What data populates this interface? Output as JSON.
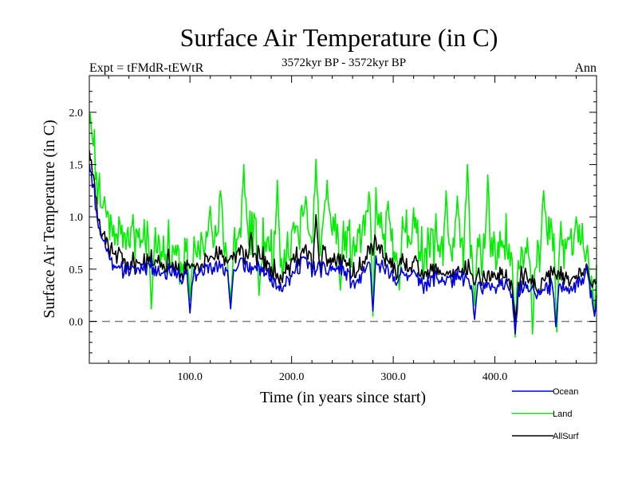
{
  "chart_data": {
    "type": "line",
    "title": "Surface Air Temperature (in C)",
    "subtitle": "3572kyr BP - 3572kyr BP",
    "expt_label": "Expt = tFMdR-tEWtR",
    "season_label": "Ann",
    "xlabel": "Time (in years since start)",
    "ylabel": "Surface Air Temperature (in C)",
    "xlim": [
      1,
      500
    ],
    "ylim": [
      -0.4,
      2.35
    ],
    "x_ticks": [
      {
        "value": 100,
        "label": "100.0"
      },
      {
        "value": 200,
        "label": "200.0"
      },
      {
        "value": 300,
        "label": "300.0"
      },
      {
        "value": 400,
        "label": "400.0"
      }
    ],
    "y_ticks": [
      {
        "value": 0.0,
        "label": "0.0"
      },
      {
        "value": 0.5,
        "label": "0.5"
      },
      {
        "value": 1.0,
        "label": "1.0"
      },
      {
        "value": 1.5,
        "label": "1.5"
      },
      {
        "value": 2.0,
        "label": "2.0"
      }
    ],
    "reference_line": {
      "y": 0.0,
      "style": "dashed",
      "color": "#808080"
    },
    "x_sample_step": 10,
    "series": [
      {
        "name": "Land",
        "color": "#00ee00",
        "x_start": 1,
        "values": [
          2.05,
          1.2,
          0.95,
          0.85,
          0.82,
          0.8,
          0.95,
          0.65,
          0.7,
          0.55,
          0.7,
          0.65,
          0.8,
          0.75,
          0.7,
          0.85,
          0.9,
          0.75,
          0.7,
          0.6,
          0.8,
          1.05,
          0.75,
          0.8,
          0.9,
          0.85,
          0.65,
          0.9,
          1.2,
          0.8,
          0.7,
          0.85,
          0.9,
          0.65,
          0.8,
          0.7,
          0.7,
          0.7,
          0.65,
          0.75,
          0.6,
          0.75,
          0.7,
          0.75,
          0.75,
          0.75,
          0.8,
          0.7,
          0.7,
          0.7,
          0.7
        ],
        "spikes": [
          [
            62,
            0.12
          ],
          [
            100,
            0.2
          ],
          [
            120,
            1.1
          ],
          [
            130,
            1.25
          ],
          [
            140,
            0.2
          ],
          [
            153,
            1.5
          ],
          [
            168,
            0.25
          ],
          [
            186,
            1.35
          ],
          [
            224,
            1.55
          ],
          [
            235,
            1.35
          ],
          [
            248,
            0.3
          ],
          [
            280,
            0.05
          ],
          [
            295,
            1.15
          ],
          [
            306,
            0.3
          ],
          [
            352,
            1.25
          ],
          [
            363,
            1.2
          ],
          [
            373,
            1.5
          ],
          [
            380,
            0.15
          ],
          [
            393,
            1.4
          ],
          [
            420,
            -0.15
          ],
          [
            424,
            0.5
          ],
          [
            437,
            -0.12
          ],
          [
            448,
            1.25
          ],
          [
            461,
            -0.1
          ],
          [
            480,
            1.0
          ],
          [
            494,
            0.3
          ],
          [
            498,
            0.05
          ]
        ],
        "noise": 0.3
      },
      {
        "name": "AllSurf",
        "color": "#000000",
        "x_start": 1,
        "values": [
          1.7,
          0.9,
          0.7,
          0.6,
          0.55,
          0.55,
          0.65,
          0.55,
          0.6,
          0.45,
          0.55,
          0.5,
          0.65,
          0.6,
          0.6,
          0.65,
          0.6,
          0.6,
          0.5,
          0.45,
          0.55,
          0.7,
          0.55,
          0.6,
          0.6,
          0.6,
          0.45,
          0.55,
          0.75,
          0.6,
          0.5,
          0.55,
          0.55,
          0.45,
          0.5,
          0.45,
          0.45,
          0.5,
          0.4,
          0.45,
          0.4,
          0.45,
          0.35,
          0.45,
          0.35,
          0.4,
          0.45,
          0.4,
          0.4,
          0.45,
          0.35
        ],
        "spikes": [
          [
            160,
            0.85
          ],
          [
            224,
            1.02
          ],
          [
            380,
            0.35
          ],
          [
            420,
            0.0
          ],
          [
            490,
            0.55
          ]
        ],
        "noise": 0.13
      },
      {
        "name": "Ocean",
        "color": "#0000dd",
        "x_start": 1,
        "values": [
          1.55,
          0.85,
          0.6,
          0.5,
          0.5,
          0.5,
          0.55,
          0.45,
          0.5,
          0.4,
          0.45,
          0.45,
          0.55,
          0.5,
          0.5,
          0.55,
          0.5,
          0.5,
          0.4,
          0.35,
          0.45,
          0.6,
          0.5,
          0.5,
          0.5,
          0.5,
          0.35,
          0.45,
          0.6,
          0.5,
          0.4,
          0.45,
          0.45,
          0.35,
          0.4,
          0.4,
          0.4,
          0.4,
          0.3,
          0.35,
          0.3,
          0.35,
          0.25,
          0.35,
          0.3,
          0.3,
          0.35,
          0.3,
          0.35,
          0.35,
          0.25
        ],
        "spikes": [
          [
            100,
            0.08
          ],
          [
            140,
            0.12
          ],
          [
            280,
            0.1
          ],
          [
            380,
            0.02
          ],
          [
            420,
            -0.12
          ],
          [
            460,
            -0.05
          ],
          [
            490,
            0.55
          ],
          [
            498,
            0.05
          ]
        ],
        "noise": 0.1
      }
    ],
    "legend_order": [
      "Ocean",
      "Land",
      "AllSurf"
    ],
    "legend_position": "bottom-right"
  }
}
